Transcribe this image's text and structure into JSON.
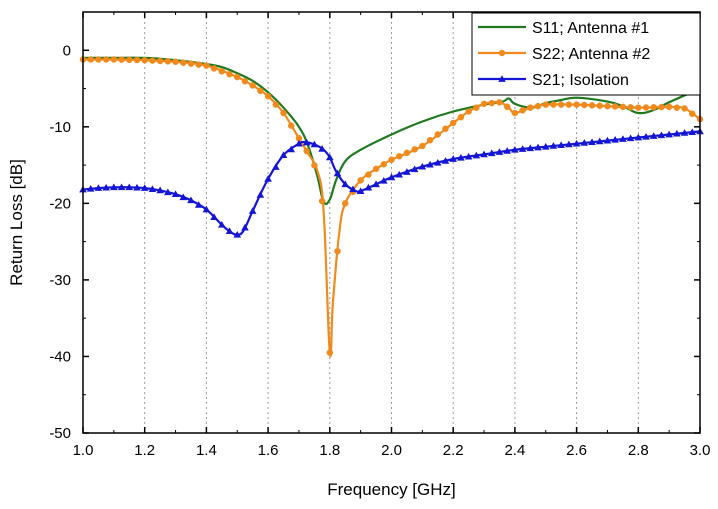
{
  "chart_data": {
    "type": "line",
    "title": "",
    "xlabel": "Frequency [GHz]",
    "ylabel": "Return Loss [dB]",
    "xlim": [
      1.0,
      3.0
    ],
    "ylim": [
      -50,
      5
    ],
    "xticks": [
      1.0,
      1.2,
      1.4,
      1.6,
      1.8,
      2.0,
      2.2,
      2.4,
      2.6,
      2.8,
      3.0
    ],
    "xtick_labels": [
      "1.0",
      "1.2",
      "1.4",
      "1.6",
      "1.8",
      "2.0",
      "2.2",
      "2.4",
      "2.6",
      "2.8",
      "3.0"
    ],
    "yticks": [
      0,
      -10,
      -20,
      -30,
      -40,
      -50
    ],
    "ytick_labels": [
      "0",
      "-10",
      "-20",
      "-30",
      "-40",
      "-50"
    ],
    "grid": "vertical dotted",
    "legend_position": "top-right",
    "series": [
      {
        "name": "S11; Antenna #1",
        "color": "#1f7a1f",
        "marker": "none",
        "x": [
          1.0,
          1.1,
          1.2,
          1.3,
          1.4,
          1.45,
          1.5,
          1.55,
          1.6,
          1.65,
          1.7,
          1.73,
          1.76,
          1.78,
          1.8,
          1.82,
          1.85,
          1.9,
          2.0,
          2.1,
          2.2,
          2.3,
          2.36,
          2.38,
          2.4,
          2.45,
          2.48,
          2.5,
          2.55,
          2.6,
          2.7,
          2.75,
          2.8,
          2.85,
          2.9,
          3.0
        ],
        "y": [
          -1.0,
          -1.0,
          -1.0,
          -1.3,
          -1.8,
          -2.2,
          -3.0,
          -4.0,
          -5.5,
          -7.5,
          -10.0,
          -12.5,
          -16.5,
          -19.8,
          -19.5,
          -17.0,
          -14.5,
          -13.0,
          -11.0,
          -9.3,
          -8.0,
          -7.1,
          -6.7,
          -6.3,
          -7.0,
          -7.5,
          -7.2,
          -6.9,
          -6.5,
          -6.2,
          -6.7,
          -7.3,
          -8.2,
          -7.8,
          -6.8,
          -5.0
        ]
      },
      {
        "name": "S22; Antenna #2",
        "color": "#f08a1c",
        "marker": "circle",
        "x": [
          1.0,
          1.1,
          1.2,
          1.3,
          1.4,
          1.5,
          1.55,
          1.6,
          1.65,
          1.7,
          1.73,
          1.76,
          1.78,
          1.8,
          1.81,
          1.83,
          1.85,
          1.9,
          1.95,
          2.0,
          2.1,
          2.2,
          2.25,
          2.3,
          2.35,
          2.38,
          2.4,
          2.45,
          2.5,
          2.6,
          2.7,
          2.8,
          2.9,
          2.95,
          3.0
        ],
        "y": [
          -1.2,
          -1.2,
          -1.3,
          -1.5,
          -2.0,
          -3.5,
          -4.6,
          -6.0,
          -8.2,
          -11.5,
          -13.5,
          -15.8,
          -21.0,
          -39.5,
          -33.0,
          -24.0,
          -20.0,
          -17.0,
          -15.5,
          -14.3,
          -12.5,
          -9.5,
          -8.0,
          -7.0,
          -6.8,
          -7.5,
          -8.2,
          -7.5,
          -7.1,
          -7.1,
          -7.3,
          -7.5,
          -7.4,
          -7.6,
          -9.0
        ]
      },
      {
        "name": "S21; Isolation",
        "color": "#1515d6",
        "marker": "triangle",
        "x": [
          1.0,
          1.05,
          1.1,
          1.15,
          1.2,
          1.25,
          1.3,
          1.35,
          1.4,
          1.45,
          1.48,
          1.5,
          1.52,
          1.55,
          1.6,
          1.65,
          1.7,
          1.72,
          1.75,
          1.78,
          1.8,
          1.82,
          1.85,
          1.88,
          1.9,
          1.95,
          2.0,
          2.1,
          2.2,
          2.3,
          2.4,
          2.5,
          2.6,
          2.7,
          2.8,
          2.9,
          3.0
        ],
        "y": [
          -18.2,
          -18.0,
          -17.9,
          -17.9,
          -18.0,
          -18.3,
          -18.8,
          -19.6,
          -20.8,
          -22.8,
          -23.8,
          -24.1,
          -23.6,
          -21.0,
          -16.8,
          -13.7,
          -12.2,
          -12.0,
          -12.3,
          -13.0,
          -14.0,
          -15.8,
          -17.5,
          -18.3,
          -18.4,
          -17.5,
          -16.6,
          -15.2,
          -14.2,
          -13.6,
          -13.0,
          -12.6,
          -12.2,
          -11.8,
          -11.4,
          -11.0,
          -10.6
        ]
      }
    ]
  }
}
